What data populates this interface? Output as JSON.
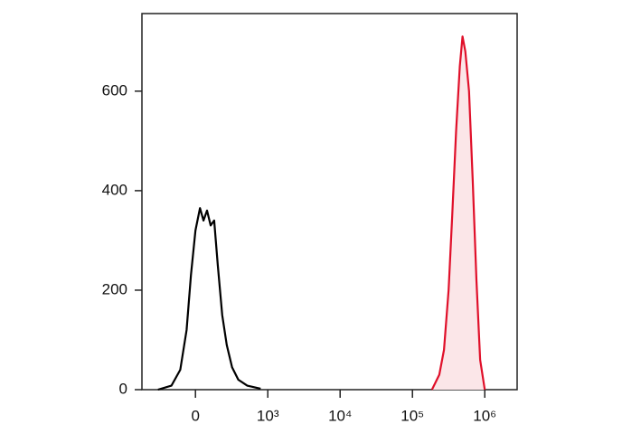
{
  "chart_data": {
    "type": "line",
    "series": [
      {
        "color": "#000000",
        "x": [
          -519,
          -333,
          -210,
          -123,
          -62,
          0,
          62,
          111,
          160,
          210,
          259,
          309,
          370,
          432,
          506,
          593,
          716,
          901
        ],
        "values": [
          0,
          8,
          40,
          120,
          230,
          320,
          365,
          340,
          360,
          330,
          340,
          250,
          150,
          90,
          45,
          20,
          8,
          2
        ]
      },
      {
        "color": "#e0102a",
        "fill": "#fbe6e8",
        "x": [
          186000,
          235000,
          273000,
          316000,
          355000,
          401000,
          451000,
          492000,
          538000,
          605000,
          681000,
          767000,
          863000,
          1000000
        ],
        "values": [
          0,
          30,
          80,
          200,
          350,
          520,
          650,
          710,
          680,
          600,
          420,
          220,
          60,
          0
        ]
      }
    ],
    "xscale": "biexponential",
    "linear_limit": 1000,
    "xlim": [
      -740,
      2800000
    ],
    "xticks": [
      0,
      {
        "value": 1000,
        "label": "10³"
      },
      {
        "value": 10000,
        "label": "10⁴"
      },
      {
        "value": 100000,
        "label": "10⁵"
      },
      {
        "value": 1000000,
        "label": "10⁶"
      }
    ],
    "ylim": [
      0,
      756
    ],
    "yticks": [
      0,
      200,
      400,
      600
    ]
  }
}
